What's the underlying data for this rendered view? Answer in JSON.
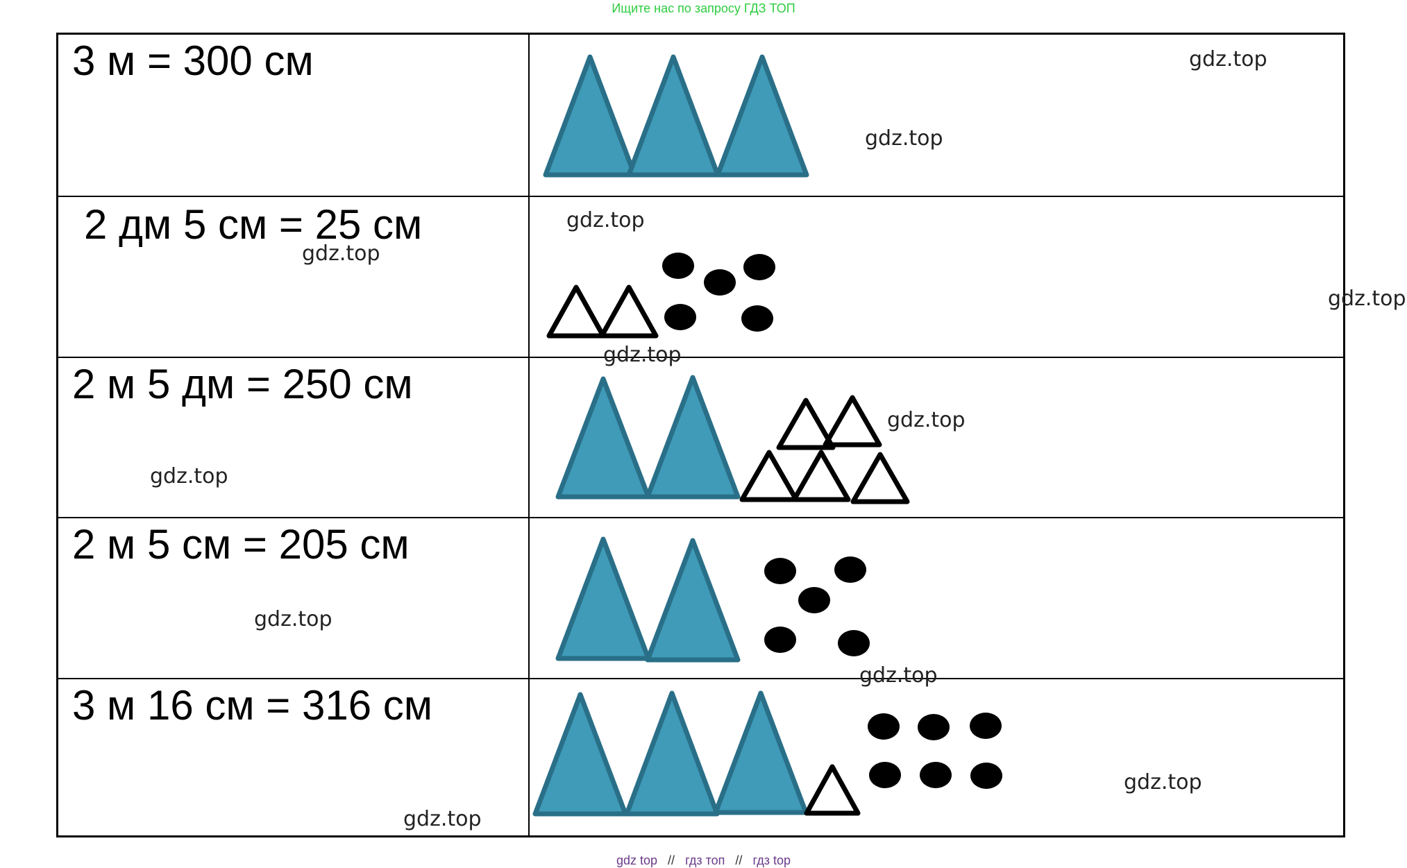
{
  "banner": "Ищите нас по запросу ГДЗ ТОП",
  "watermark": "gdz.top",
  "footer": {
    "link1": "gdz top",
    "link2": "гдз топ",
    "link3": "гдз top",
    "separator": "//"
  },
  "colors": {
    "triangle_fill": "#3f9bb8",
    "triangle_stroke": "#2a6f88",
    "dot": "#000000"
  },
  "rows": [
    {
      "equation": "3 м = 300 см",
      "big_triangles": 3,
      "small_triangles": 0,
      "dots": 0
    },
    {
      "equation": "2 дм 5 см = 25 см",
      "big_triangles": 0,
      "small_triangles": 2,
      "dots": 5
    },
    {
      "equation": "2 м 5 дм = 250 см",
      "big_triangles": 2,
      "small_triangles": 5,
      "dots": 0
    },
    {
      "equation": "2 м 5 см = 205 см",
      "big_triangles": 2,
      "small_triangles": 0,
      "dots": 5
    },
    {
      "equation": "3 м 16 см = 316 см",
      "big_triangles": 3,
      "small_triangles": 1,
      "dots": 6
    }
  ]
}
